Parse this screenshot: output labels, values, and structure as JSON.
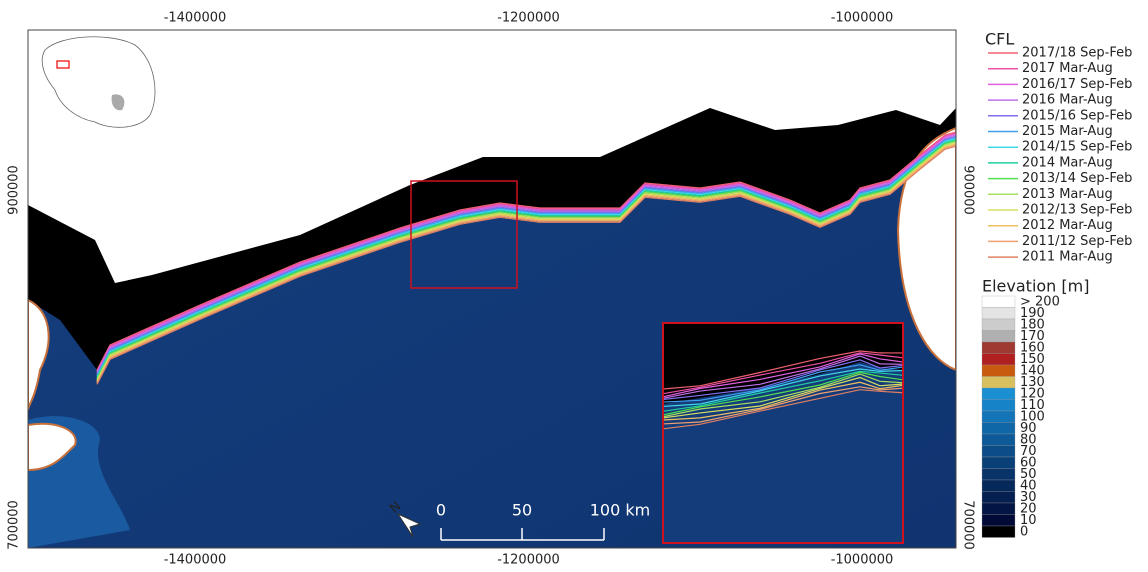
{
  "map": {
    "x_ticks": [
      -1400000,
      -1200000,
      -1000000
    ],
    "y_ticks": [
      900000,
      700000
    ],
    "north_label": "N",
    "scale_bar": [
      "0",
      "50",
      "100 km"
    ],
    "cfl": {
      "title": "CFL",
      "entries": [
        {
          "label": "2017/18 Sep-Feb",
          "color": "#f06070"
        },
        {
          "label": "2017 Mar-Aug",
          "color": "#f050a8"
        },
        {
          "label": "2016/17 Sep-Feb",
          "color": "#e060e0"
        },
        {
          "label": "2016 Mar-Aug",
          "color": "#c070e8"
        },
        {
          "label": "2015/16 Sep-Feb",
          "color": "#8070f0"
        },
        {
          "label": "2015 Mar-Aug",
          "color": "#40a0f0"
        },
        {
          "label": "2014/15 Sep-Feb",
          "color": "#40d8e8"
        },
        {
          "label": "2014 Mar-Aug",
          "color": "#20d0a0"
        },
        {
          "label": "2013/14 Sep-Feb",
          "color": "#50e050"
        },
        {
          "label": "2013 Mar-Aug",
          "color": "#a8e060"
        },
        {
          "label": "2012/13 Sep-Feb",
          "color": "#d8e060"
        },
        {
          "label": "2012 Mar-Aug",
          "color": "#f0c060"
        },
        {
          "label": "2011/12 Sep-Feb",
          "color": "#f0a070"
        },
        {
          "label": "2011 Mar-Aug",
          "color": "#e08060"
        }
      ]
    },
    "elevation": {
      "title": "Elevation [m]",
      "entries": [
        {
          "label": "> 200",
          "color": "#ffffff"
        },
        {
          "label": 190,
          "color": "#e4e4e4"
        },
        {
          "label": 180,
          "color": "#cccccc"
        },
        {
          "label": 170,
          "color": "#b0b0b0"
        },
        {
          "label": 160,
          "color": "#9e3a32"
        },
        {
          "label": 150,
          "color": "#b02020"
        },
        {
          "label": 140,
          "color": "#c85a10"
        },
        {
          "label": 130,
          "color": "#d8c060"
        },
        {
          "label": 120,
          "color": "#1a90d2"
        },
        {
          "label": 110,
          "color": "#1682c8"
        },
        {
          "label": 100,
          "color": "#1374b8"
        },
        {
          "label": 90,
          "color": "#1067a8"
        },
        {
          "label": 80,
          "color": "#0e5a98"
        },
        {
          "label": 70,
          "color": "#0c4d88"
        },
        {
          "label": 60,
          "color": "#0a4078"
        },
        {
          "label": 50,
          "color": "#08346a"
        },
        {
          "label": 40,
          "color": "#06295c"
        },
        {
          "label": 30,
          "color": "#041f50"
        },
        {
          "label": 20,
          "color": "#031544"
        },
        {
          "label": 10,
          "color": "#020b38"
        },
        {
          "label": 0,
          "color": "#000000"
        }
      ]
    }
  }
}
